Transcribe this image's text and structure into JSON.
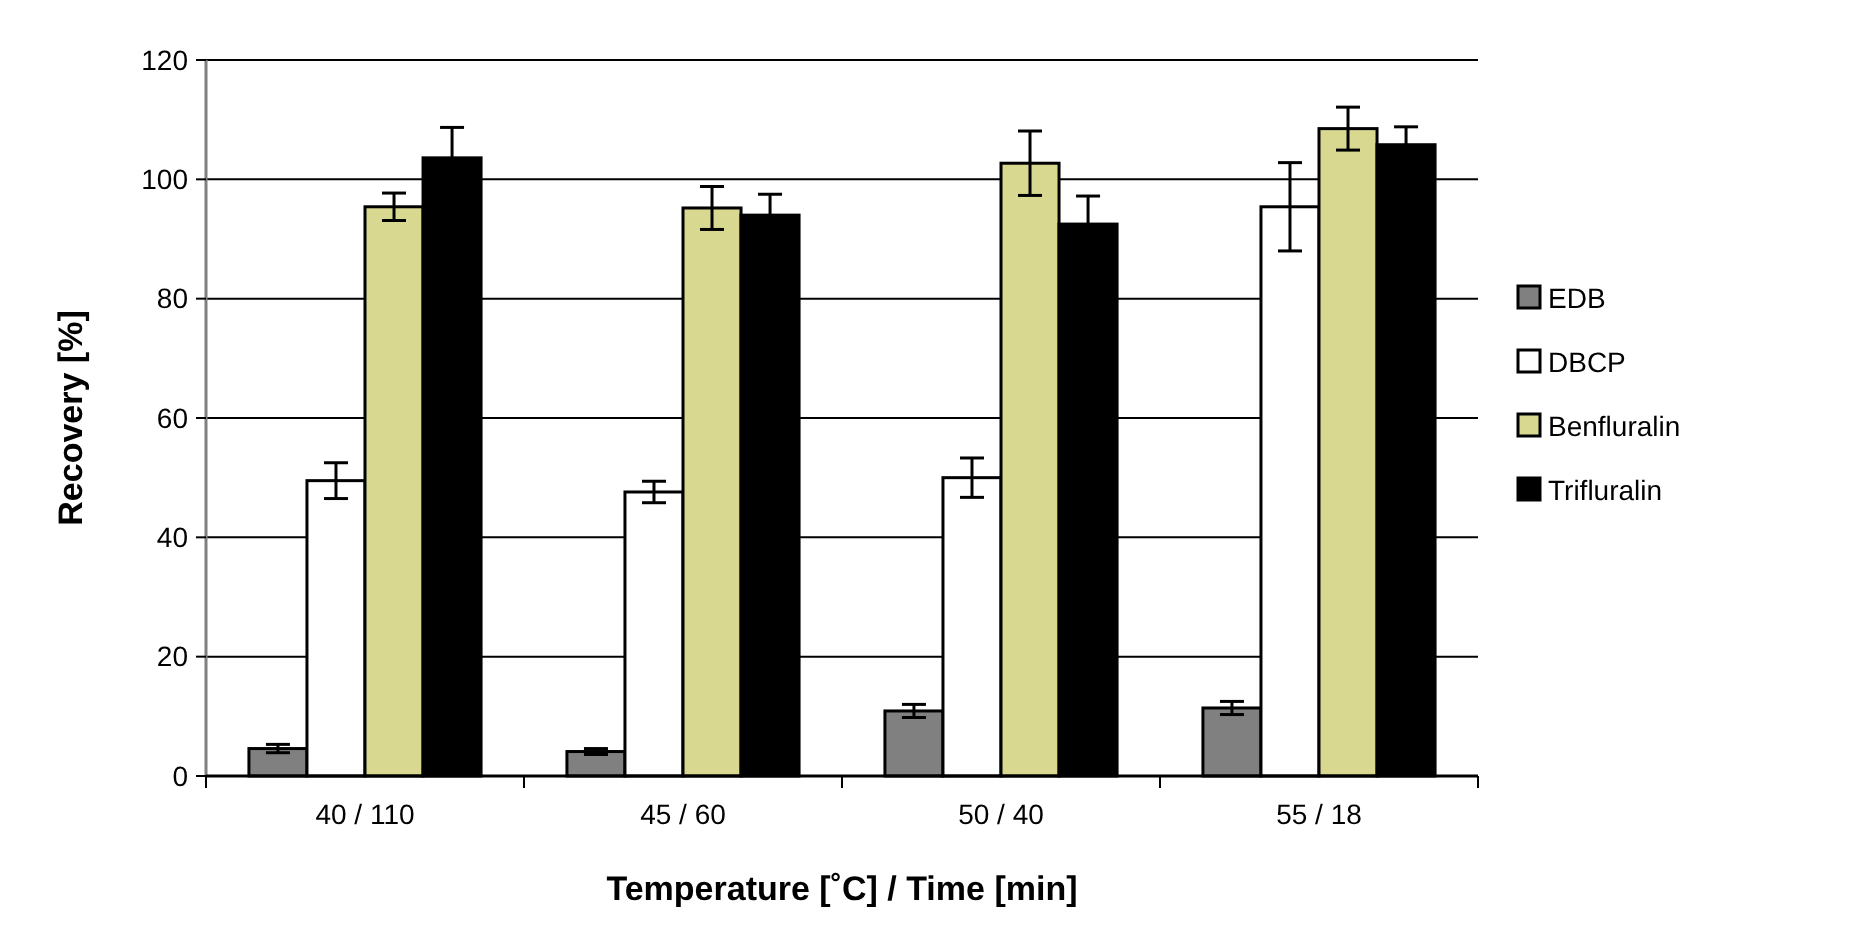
{
  "chart_data": {
    "type": "bar",
    "xlabel": "Temperature [˚C] / Time [min]",
    "ylabel": "Recovery [%]",
    "categories": [
      "40 / 110",
      "45 / 60",
      "50 / 40",
      "55 / 18"
    ],
    "series": [
      {
        "name": "EDB",
        "color": "#808080",
        "values": [
          4.6,
          4.1,
          10.9,
          11.4
        ],
        "errors": [
          0.7,
          0.5,
          1.1,
          1.1
        ]
      },
      {
        "name": "DBCP",
        "color": "#ffffff",
        "values": [
          49.5,
          47.6,
          50,
          95.4
        ],
        "errors": [
          3,
          1.8,
          3.3,
          7.4
        ]
      },
      {
        "name": "Benfluralin",
        "color": "#d8d890",
        "values": [
          95.4,
          95.2,
          102.7,
          108.5
        ],
        "errors": [
          2.3,
          3.6,
          5.4,
          3.6
        ]
      },
      {
        "name": "Trifluralin",
        "color": "#000000",
        "values": [
          103.6,
          94,
          92.5,
          105.8
        ],
        "errors": [
          5.1,
          3.5,
          4.7,
          3
        ]
      }
    ],
    "ylim": [
      0,
      120
    ],
    "yticks": [
      0,
      20,
      40,
      60,
      80,
      100,
      120
    ],
    "grid": "y",
    "legend": "right"
  }
}
